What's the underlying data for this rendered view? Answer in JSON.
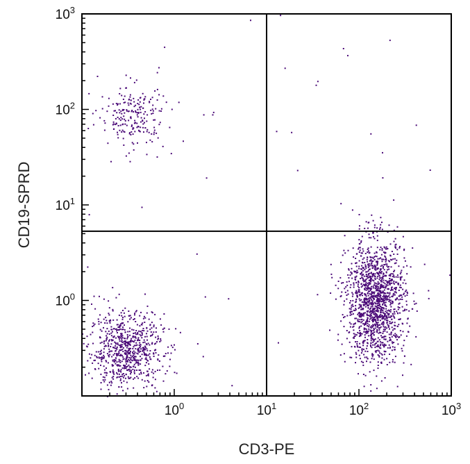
{
  "chart_data": {
    "type": "scatter",
    "title": "",
    "xlabel": "CD3-PE",
    "ylabel": "CD19-SPRD",
    "x_scale": "log",
    "y_scale": "log",
    "xlim": [
      0.1,
      1000
    ],
    "ylim": [
      0.1,
      1000
    ],
    "x_ticks": [
      {
        "value": 1,
        "base": "10",
        "exp": "0"
      },
      {
        "value": 10,
        "base": "10",
        "exp": "1"
      },
      {
        "value": 100,
        "base": "10",
        "exp": "2"
      },
      {
        "value": 1000,
        "base": "10",
        "exp": "3"
      }
    ],
    "y_ticks": [
      {
        "value": 1,
        "base": "10",
        "exp": "0"
      },
      {
        "value": 10,
        "base": "10",
        "exp": "1"
      },
      {
        "value": 100,
        "base": "10",
        "exp": "2"
      },
      {
        "value": 1000,
        "base": "10",
        "exp": "3"
      }
    ],
    "quadrant_gates": {
      "x": 10,
      "y": 5.3
    },
    "grid": false,
    "point_color": "#4b0a78",
    "populations": [
      {
        "center_x": 0.3,
        "center_y": 0.3,
        "count": 760
      },
      {
        "center_x": 150,
        "center_y": 1.0,
        "count": 1500
      },
      {
        "center_x": 0.35,
        "center_y": 85,
        "count": 220
      }
    ]
  }
}
